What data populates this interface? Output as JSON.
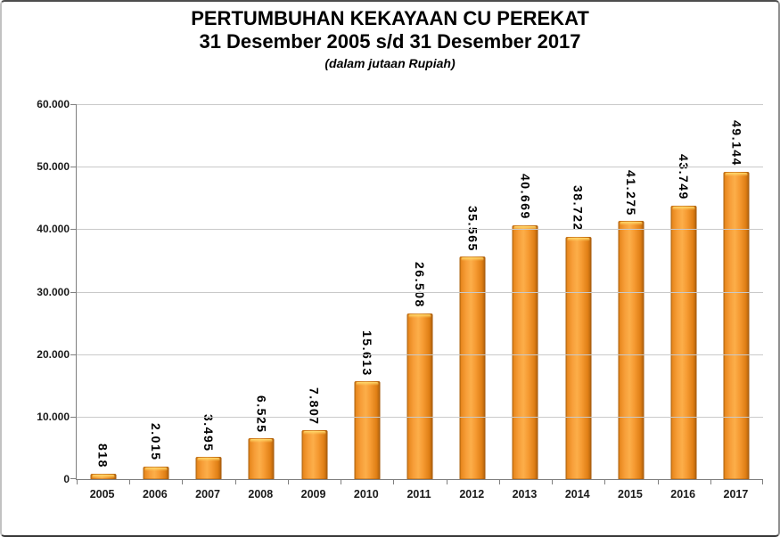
{
  "header": {
    "title": "PERTUMBUHAN KEKAYAAN CU PEREKAT",
    "subtitle": "31 Desember 2005 s/d 31 Desember 2017",
    "units_note": "(dalam jutaan Rupiah)"
  },
  "chart_data": {
    "type": "bar",
    "title": "PERTUMBUHAN KEKAYAAN CU PEREKAT",
    "subtitle": "31 Desember 2005 s/d 31 Desember 2017",
    "units_note": "(dalam jutaan Rupiah)",
    "xlabel": "",
    "ylabel": "",
    "categories": [
      "2005",
      "2006",
      "2007",
      "2008",
      "2009",
      "2010",
      "2011",
      "2012",
      "2013",
      "2014",
      "2015",
      "2016",
      "2017"
    ],
    "values": [
      818,
      2015,
      3495,
      6525,
      7807,
      15613,
      26508,
      35565,
      40669,
      38722,
      41275,
      43749,
      49144
    ],
    "value_labels": [
      "818",
      "2.015",
      "3.495",
      "6.525",
      "7.807",
      "15.613",
      "26.508",
      "35.565",
      "40.669",
      "38.722",
      "41.275",
      "43.749",
      "49.144"
    ],
    "y_max": 60000,
    "y_tick_labels": [
      "0",
      "10.000",
      "20.000",
      "30.000",
      "40.000",
      "50.000",
      "60.000"
    ],
    "ylim": [
      0,
      60000
    ],
    "grid": true,
    "legend": false,
    "colors": {
      "bar_fill": "#F79F3A",
      "bar_highlight": "#FFD96A",
      "bar_edge": "#A95D0C",
      "gridline": "#C9C9C9",
      "axis": "#7F7F7F",
      "text": "#000000"
    }
  }
}
